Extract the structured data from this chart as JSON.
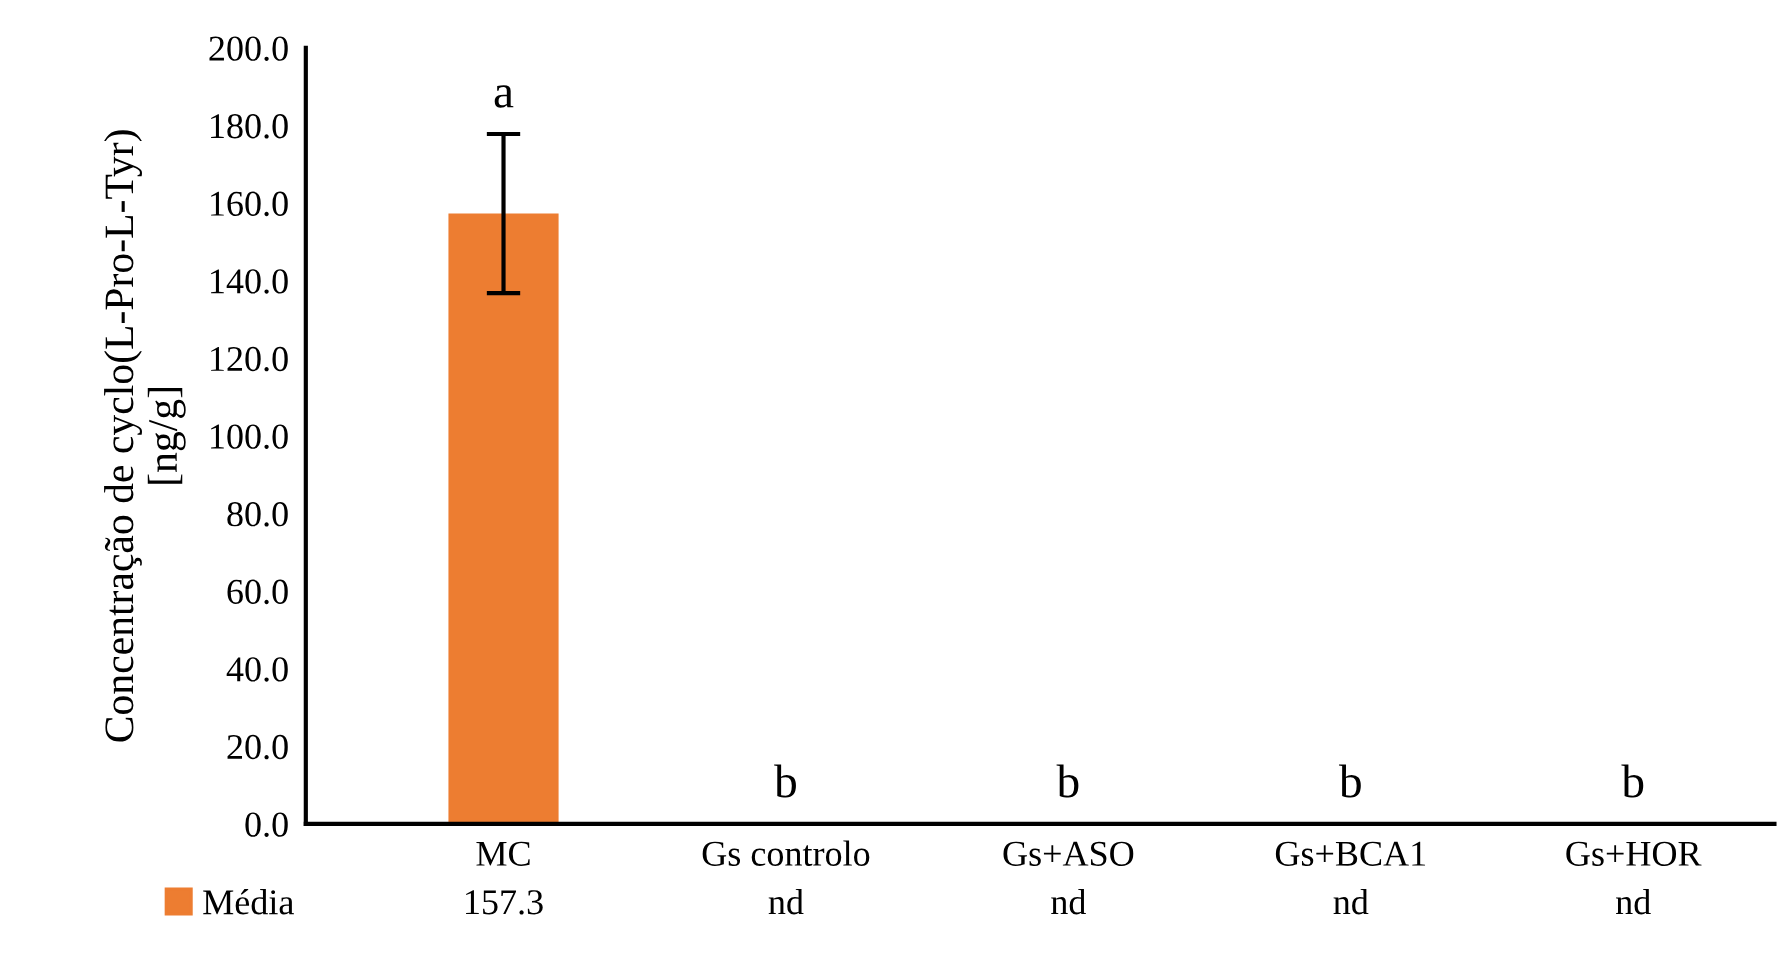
{
  "chart_data": {
    "type": "bar",
    "ylabel": "Concentração de cyclo(L-Pro-L-Tyr)\n[ng/g]",
    "categories": [
      "MC",
      "Gs controlo",
      "Gs+ASO",
      "Gs+BCA1",
      "Gs+HOR"
    ],
    "series": [
      {
        "name": "Média",
        "color": "#ed7d31",
        "values": [
          157.3,
          null,
          null,
          null,
          null
        ],
        "errors": [
          20.5,
          null,
          null,
          null,
          null
        ],
        "value_labels": [
          "157.3",
          "nd",
          "nd",
          "nd",
          "nd"
        ]
      }
    ],
    "ylim": [
      0,
      200
    ],
    "yticks": [
      {
        "value": 0,
        "label": "0.0"
      },
      {
        "value": 20,
        "label": "20.0"
      },
      {
        "value": 40,
        "label": "40.0"
      },
      {
        "value": 60,
        "label": "60.0"
      },
      {
        "value": 80,
        "label": "80.0"
      },
      {
        "value": 100,
        "label": "100.0"
      },
      {
        "value": 120,
        "label": "120.0"
      },
      {
        "value": 140,
        "label": "140.0"
      },
      {
        "value": 160,
        "label": "160.0"
      },
      {
        "value": 180,
        "label": "180.0"
      },
      {
        "value": 200,
        "label": "200.0"
      }
    ],
    "annotations": [
      "a",
      "b",
      "b",
      "b",
      "b"
    ],
    "grid": false,
    "legend": "bottom left"
  }
}
